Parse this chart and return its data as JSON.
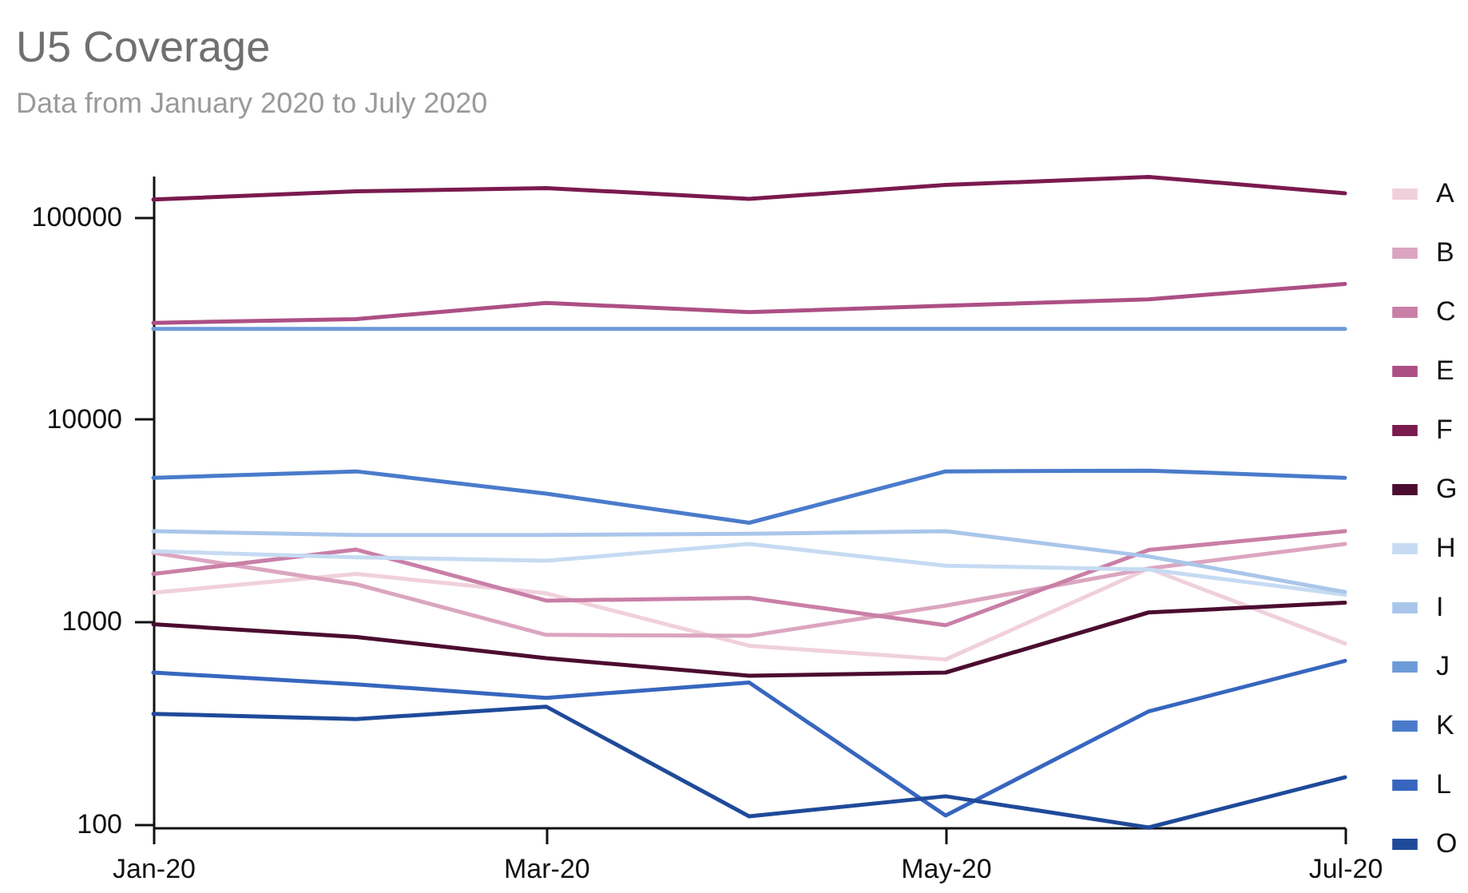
{
  "chart_data": {
    "type": "line",
    "title": "U5 Coverage",
    "subtitle": "Data from January 2020 to July 2020",
    "x": [
      "2020-01",
      "2020-02",
      "2020-03",
      "2020-04",
      "2020-05",
      "2020-06",
      "2020-07"
    ],
    "xlim": [
      "2020-01",
      "2020-07"
    ],
    "xticks": [
      {
        "value": "2020-01",
        "label": "Jan-20"
      },
      {
        "value": "2020-03",
        "label": "Mar-20"
      },
      {
        "value": "2020-05",
        "label": "May-20"
      },
      {
        "value": "2020-07",
        "label": "Jul-20"
      }
    ],
    "log": "y",
    "ylim": [
      96,
      160000
    ],
    "yticks": [
      100,
      1000,
      10000,
      100000
    ],
    "grid": false,
    "legend": "right",
    "marker": "none",
    "line_style": "solid",
    "series": [
      {
        "name": "A",
        "color": "#f0d0dc",
        "values": [
          1390,
          1720,
          1380,
          760,
          650,
          1830,
          780
        ]
      },
      {
        "name": "B",
        "color": "#dba5c0",
        "values": [
          2190,
          1530,
          860,
          850,
          1200,
          1830,
          2420
        ]
      },
      {
        "name": "C",
        "color": "#c97fa7",
        "values": [
          1720,
          2270,
          1270,
          1310,
          960,
          2260,
          2800
        ]
      },
      {
        "name": "E",
        "color": "#ad4f85",
        "values": [
          30000,
          31300,
          37600,
          33900,
          36400,
          39200,
          46700
        ]
      },
      {
        "name": "F",
        "color": "#7a1a4f",
        "values": [
          122000,
          134000,
          139000,
          123000,
          144000,
          158000,
          131000
        ]
      },
      {
        "name": "G",
        "color": "#4b0c2f",
        "values": [
          970,
          840,
          660,
          540,
          560,
          1110,
          1240
        ]
      },
      {
        "name": "H",
        "color": "#c6dbf2",
        "values": [
          2230,
          2080,
          2000,
          2420,
          1890,
          1810,
          1360
        ]
      },
      {
        "name": "I",
        "color": "#a9c6ea",
        "values": [
          2800,
          2680,
          2680,
          2720,
          2800,
          2100,
          1400
        ]
      },
      {
        "name": "J",
        "color": "#6d9ad8",
        "values": [
          28000,
          28000,
          28000,
          28000,
          28000,
          28000,
          28000
        ]
      },
      {
        "name": "K",
        "color": "#4a7bcb",
        "values": [
          5140,
          5530,
          4290,
          3080,
          5530,
          5580,
          5140
        ]
      },
      {
        "name": "L",
        "color": "#3766bf",
        "values": [
          560,
          490,
          420,
          500,
          110,
          360,
          640
        ]
      },
      {
        "name": "O",
        "color": "#1f4a99",
        "values": [
          350,
          330,
          380,
          109,
          137,
          96,
          170
        ]
      }
    ]
  }
}
